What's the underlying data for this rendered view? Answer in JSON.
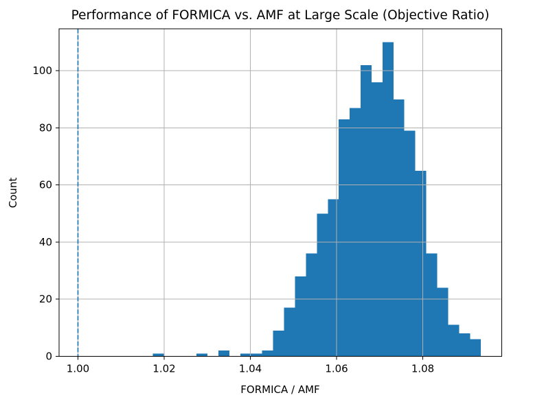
{
  "chart_data": {
    "type": "bar",
    "subtype": "histogram",
    "title": "Performance of FORMICA vs. AMF at Large Scale (Objective Ratio)",
    "xlabel": "FORMICA / AMF",
    "ylabel": "Count",
    "bin_edges": [
      1.01737,
      1.01991,
      1.02245,
      1.02498,
      1.02752,
      1.03006,
      1.0326,
      1.03513,
      1.03767,
      1.04021,
      1.04274,
      1.04528,
      1.04782,
      1.05036,
      1.05289,
      1.05543,
      1.05797,
      1.0605,
      1.06304,
      1.06558,
      1.06812,
      1.07065,
      1.07319,
      1.07573,
      1.07826,
      1.0808,
      1.08334,
      1.08588,
      1.08841,
      1.09095,
      1.09349
    ],
    "counts": [
      1,
      0,
      0,
      0,
      1,
      0,
      2,
      0,
      1,
      1,
      2,
      9,
      17,
      28,
      36,
      50,
      55,
      83,
      87,
      102,
      96,
      110,
      90,
      79,
      65,
      36,
      24,
      11,
      8,
      6
    ],
    "xticks": {
      "values": [
        1.0,
        1.02,
        1.04,
        1.06,
        1.08
      ],
      "labels": [
        "1.00",
        "1.02",
        "1.04",
        "1.06",
        "1.08"
      ]
    },
    "yticks": {
      "values": [
        0,
        20,
        40,
        60,
        80,
        100
      ],
      "labels": [
        "0",
        "20",
        "40",
        "60",
        "80",
        "100"
      ]
    },
    "xlim": [
      0.99562,
      1.09835
    ],
    "ylim": [
      0,
      114.7
    ],
    "grid": true,
    "legend": null,
    "bar_color": "#1f77b4",
    "grid_color": "#b0b0b0",
    "spine_color": "#000000",
    "reference_line": {
      "x": 1.0,
      "style": "dashed",
      "color": "#1f77b4"
    }
  }
}
